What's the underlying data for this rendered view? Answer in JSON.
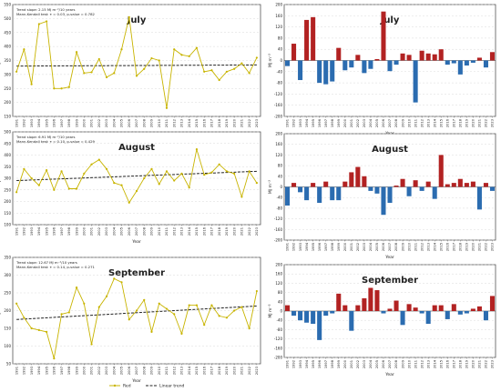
{
  "colors": {
    "line": "#c8b400",
    "trend": "#222222",
    "pos_bar": "#b22222",
    "neg_bar": "#2b6cb0",
    "border": "#555555",
    "grid": "#d0d0d0"
  },
  "legend": {
    "red": "Red",
    "trend": "Linear trend"
  },
  "chart_data": [
    {
      "type": "line",
      "title": "July",
      "ylabel": "MJ m⁻²",
      "xlabel": "Year",
      "annotation": [
        "Trend slope: 2.15 MJ m⁻²/10 years",
        "Mann-Kendall test: τ = 0.03, p-value = 0.782"
      ],
      "ylim": [
        150,
        550
      ],
      "yticks": [
        150,
        200,
        250,
        300,
        350,
        400,
        450,
        500,
        550
      ],
      "x": [
        1991,
        1992,
        1993,
        1994,
        1995,
        1996,
        1997,
        1998,
        1999,
        2000,
        2001,
        2002,
        2003,
        2004,
        2005,
        2006,
        2007,
        2008,
        2009,
        2010,
        2011,
        2012,
        2013,
        2014,
        2015,
        2016,
        2017,
        2018,
        2019,
        2020,
        2021,
        2022,
        2023
      ],
      "values": [
        310,
        390,
        265,
        480,
        490,
        250,
        250,
        255,
        380,
        305,
        308,
        355,
        290,
        305,
        390,
        505,
        295,
        320,
        358,
        350,
        180,
        390,
        370,
        365,
        395,
        310,
        315,
        280,
        310,
        320,
        340,
        305,
        360
      ],
      "trend": [
        330,
        334
      ]
    },
    {
      "type": "bar",
      "title": "July",
      "ylabel": "MJ m⁻²",
      "xlabel": "Year",
      "ylim": [
        -200,
        200
      ],
      "yticks": [
        -200,
        -160,
        -120,
        -80,
        -40,
        0,
        40,
        80,
        120,
        160,
        200
      ],
      "x": [
        1991,
        1992,
        1993,
        1994,
        1995,
        1996,
        1997,
        1998,
        1999,
        2000,
        2001,
        2002,
        2003,
        2004,
        2005,
        2006,
        2007,
        2008,
        2009,
        2010,
        2011,
        2012,
        2013,
        2014,
        2015,
        2016,
        2017,
        2018,
        2019,
        2020,
        2021,
        2022,
        2023
      ],
      "values": [
        -20,
        60,
        -70,
        145,
        155,
        -80,
        -85,
        -75,
        45,
        -35,
        -25,
        20,
        -45,
        -30,
        5,
        175,
        -38,
        -15,
        25,
        20,
        -150,
        35,
        25,
        22,
        40,
        -15,
        -10,
        -50,
        -18,
        -8,
        10,
        -25,
        30
      ]
    },
    {
      "type": "line",
      "title": "August",
      "ylabel": "MJ m⁻²",
      "xlabel": "Year",
      "annotation": [
        "Trend slope: 6.91 MJ m⁻²/10 years",
        "Mann-Kendall test: τ = 0.10, p-value = 0.429"
      ],
      "ylim": [
        100,
        500
      ],
      "yticks": [
        100,
        150,
        200,
        250,
        300,
        350,
        400,
        450,
        500
      ],
      "x": [
        1991,
        1992,
        1993,
        1994,
        1995,
        1996,
        1997,
        1998,
        1999,
        2000,
        2001,
        2002,
        2003,
        2004,
        2005,
        2006,
        2007,
        2008,
        2009,
        2010,
        2011,
        2012,
        2013,
        2014,
        2015,
        2016,
        2017,
        2018,
        2019,
        2020,
        2021,
        2022,
        2023
      ],
      "values": [
        240,
        340,
        300,
        270,
        335,
        250,
        330,
        255,
        255,
        320,
        360,
        380,
        340,
        280,
        270,
        195,
        245,
        300,
        340,
        275,
        330,
        290,
        320,
        260,
        425,
        315,
        325,
        360,
        330,
        320,
        220,
        330,
        280
      ],
      "trend": [
        290,
        330
      ]
    },
    {
      "type": "bar",
      "title": "August",
      "ylabel": "MJ m⁻²",
      "xlabel": "Year",
      "ylim": [
        -200,
        200
      ],
      "yticks": [
        -200,
        -160,
        -120,
        -80,
        -40,
        0,
        40,
        80,
        120,
        160,
        200
      ],
      "x": [
        1991,
        1992,
        1993,
        1994,
        1995,
        1996,
        1997,
        1998,
        1999,
        2000,
        2001,
        2002,
        2003,
        2004,
        2005,
        2006,
        2007,
        2008,
        2009,
        2010,
        2011,
        2012,
        2013,
        2014,
        2015,
        2016,
        2017,
        2018,
        2019,
        2020,
        2021,
        2022,
        2023
      ],
      "values": [
        -70,
        15,
        -20,
        -50,
        15,
        -60,
        20,
        -50,
        -50,
        20,
        55,
        75,
        40,
        -15,
        -25,
        -105,
        -60,
        5,
        30,
        -35,
        25,
        -15,
        20,
        -45,
        120,
        10,
        15,
        30,
        15,
        20,
        -85,
        15,
        -15
      ]
    },
    {
      "type": "line",
      "title": "September",
      "ylabel": "MJ m⁻²",
      "xlabel": "Year",
      "annotation": [
        "Trend slope: 12.67 MJ m⁻²/10 years",
        "Mann-Kendall test: τ = 0.14, p-value = 0.271"
      ],
      "ylim": [
        50,
        350
      ],
      "yticks": [
        50,
        100,
        150,
        200,
        250,
        300,
        350
      ],
      "x": [
        1991,
        1992,
        1993,
        1994,
        1995,
        1996,
        1997,
        1998,
        1999,
        2000,
        2001,
        2002,
        2003,
        2004,
        2005,
        2006,
        2007,
        2008,
        2009,
        2010,
        2011,
        2012,
        2013,
        2014,
        2015,
        2016,
        2017,
        2018,
        2019,
        2020,
        2021,
        2022,
        2023
      ],
      "values": [
        220,
        180,
        150,
        145,
        140,
        65,
        190,
        195,
        265,
        220,
        105,
        210,
        240,
        290,
        280,
        175,
        200,
        230,
        140,
        220,
        205,
        190,
        135,
        215,
        215,
        160,
        215,
        185,
        180,
        200,
        210,
        150,
        255
      ],
      "trend": [
        175,
        213
      ]
    },
    {
      "type": "bar",
      "title": "September",
      "ylabel": "MJ m⁻²",
      "xlabel": "Year",
      "ylim": [
        -200,
        200
      ],
      "yticks": [
        -200,
        -160,
        -120,
        -80,
        -40,
        0,
        40,
        80,
        120,
        160,
        200
      ],
      "x": [
        1991,
        1992,
        1993,
        1994,
        1995,
        1996,
        1997,
        1998,
        1999,
        2000,
        2001,
        2002,
        2003,
        2004,
        2005,
        2006,
        2007,
        2008,
        2009,
        2010,
        2011,
        2012,
        2013,
        2014,
        2015,
        2016,
        2017,
        2018,
        2019,
        2020,
        2021,
        2022,
        2023
      ],
      "values": [
        25,
        -20,
        -40,
        -50,
        -55,
        -125,
        -20,
        -10,
        75,
        25,
        -85,
        25,
        55,
        100,
        90,
        -10,
        10,
        45,
        -60,
        30,
        15,
        -10,
        -55,
        25,
        25,
        -35,
        30,
        -15,
        -10,
        10,
        20,
        -40,
        65
      ]
    }
  ]
}
